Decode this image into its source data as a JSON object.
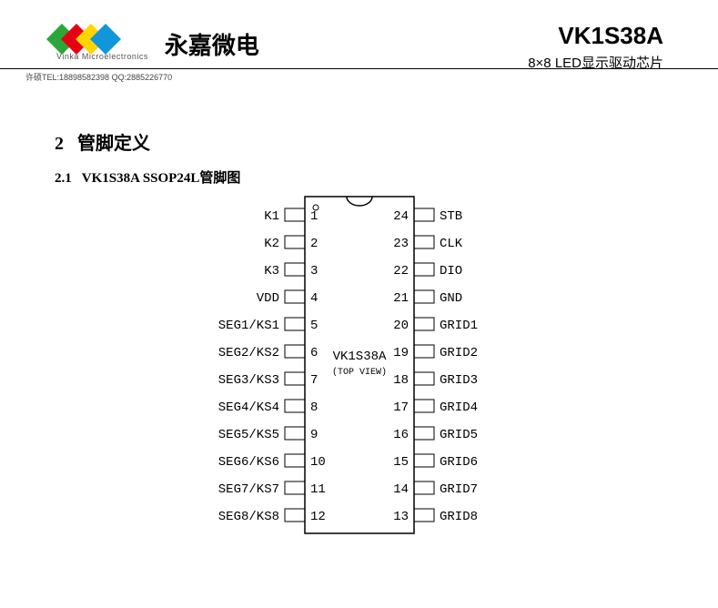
{
  "header": {
    "company_cn": "永嘉微电",
    "company_en": "Vinka Microelectronics",
    "part_number": "VK1S38A",
    "subtitle": "8×8 LED显示驱动芯片",
    "contact": "许硕TEL:18898582398 QQ:2885226770",
    "logo_colors": [
      "#2aa738",
      "#e60012",
      "#ffd400",
      "#1296db"
    ]
  },
  "section": {
    "number": "2",
    "title": "管脚定义",
    "sub_number": "2.1",
    "sub_title": "VK1S38A SSOP24L管脚图"
  },
  "chip": {
    "name": "VK1S38A",
    "view": "(TOP VIEW)",
    "pin_count": 24,
    "body_width": 120,
    "body_height": 370,
    "pin_pitch": 30,
    "pin_len": 22,
    "font_size": 14,
    "font_family": "Courier New",
    "stroke": "#000000",
    "left_pins": [
      {
        "n": 1,
        "label": "K1"
      },
      {
        "n": 2,
        "label": "K2"
      },
      {
        "n": 3,
        "label": "K3"
      },
      {
        "n": 4,
        "label": "VDD"
      },
      {
        "n": 5,
        "label": "SEG1/KS1"
      },
      {
        "n": 6,
        "label": "SEG2/KS2"
      },
      {
        "n": 7,
        "label": "SEG3/KS3"
      },
      {
        "n": 8,
        "label": "SEG4/KS4"
      },
      {
        "n": 9,
        "label": "SEG5/KS5"
      },
      {
        "n": 10,
        "label": "SEG6/KS6"
      },
      {
        "n": 11,
        "label": "SEG7/KS7"
      },
      {
        "n": 12,
        "label": "SEG8/KS8"
      }
    ],
    "right_pins": [
      {
        "n": 24,
        "label": "STB"
      },
      {
        "n": 23,
        "label": "CLK"
      },
      {
        "n": 22,
        "label": "DIO"
      },
      {
        "n": 21,
        "label": "GND"
      },
      {
        "n": 20,
        "label": "GRID1"
      },
      {
        "n": 19,
        "label": "GRID2"
      },
      {
        "n": 18,
        "label": "GRID3"
      },
      {
        "n": 17,
        "label": "GRID4"
      },
      {
        "n": 16,
        "label": "GRID5"
      },
      {
        "n": 15,
        "label": "GRID6"
      },
      {
        "n": 14,
        "label": "GRID7"
      },
      {
        "n": 13,
        "label": "GRID8"
      }
    ]
  }
}
